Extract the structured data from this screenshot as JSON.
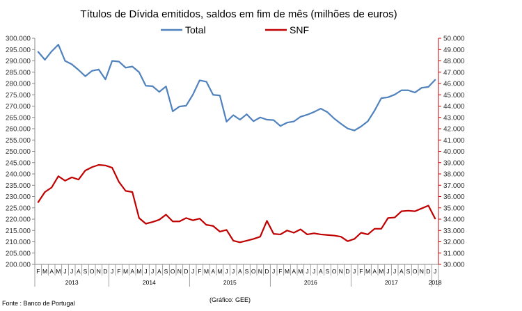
{
  "chart_data": {
    "type": "line",
    "title": "Títulos de Dívida emitidos, saldos em fim de mês  (milhões de euros)",
    "source": "Fonte : Banco de Portugal",
    "credit": "(Gráfico: GEE)",
    "left_axis": {
      "min": 200000,
      "max": 300000,
      "step": 5000,
      "tick_labels": [
        "200.000",
        "205.000",
        "210.000",
        "215.000",
        "220.000",
        "225.000",
        "230.000",
        "235.000",
        "240.000",
        "245.000",
        "250.000",
        "255.000",
        "260.000",
        "265.000",
        "270.000",
        "275.000",
        "280.000",
        "285.000",
        "290.000",
        "295.000",
        "300.000"
      ]
    },
    "right_axis": {
      "min": 30000,
      "max": 50000,
      "step": 1000,
      "color": "#c00000",
      "tick_labels": [
        "30.000",
        "31.000",
        "32.000",
        "33.000",
        "34.000",
        "35.000",
        "36.000",
        "37.000",
        "38.000",
        "39.000",
        "40.000",
        "41.000",
        "42.000",
        "43.000",
        "44.000",
        "45.000",
        "46.000",
        "47.000",
        "48.000",
        "49.000",
        "50.000"
      ]
    },
    "month_labels": [
      "F",
      "M",
      "A",
      "M",
      "J",
      "J",
      "A",
      "S",
      "O",
      "N",
      "D",
      "J",
      "F",
      "M",
      "A",
      "M",
      "J",
      "J",
      "A",
      "S",
      "O",
      "N",
      "D",
      "J",
      "F",
      "M",
      "A",
      "M",
      "J",
      "J",
      "A",
      "S",
      "O",
      "N",
      "D",
      "J",
      "F",
      "M",
      "A",
      "M",
      "J",
      "J",
      "A",
      "S",
      "O",
      "N",
      "D",
      "J",
      "F",
      "M",
      "A",
      "M",
      "J",
      "J",
      "A",
      "S",
      "O",
      "N",
      "D",
      "J"
    ],
    "year_groups": [
      {
        "label": "2013",
        "start": 0,
        "end": 10
      },
      {
        "label": "2014",
        "start": 11,
        "end": 22
      },
      {
        "label": "2015",
        "start": 23,
        "end": 34
      },
      {
        "label": "2016",
        "start": 35,
        "end": 46
      },
      {
        "label": "2017",
        "start": 47,
        "end": 58
      },
      {
        "label": "2018",
        "start": 59,
        "end": 59
      }
    ],
    "series": [
      {
        "name": "Total",
        "axis": "left",
        "color": "#4f81bd",
        "values": [
          294000,
          290500,
          294200,
          297200,
          290000,
          288500,
          286000,
          283200,
          285600,
          286200,
          281800,
          290000,
          289700,
          287000,
          287500,
          285000,
          279000,
          278800,
          276300,
          278700,
          267700,
          269800,
          270200,
          275100,
          281400,
          280800,
          275000,
          274700,
          263100,
          266000,
          264000,
          266400,
          263300,
          265000,
          264000,
          263800,
          261200,
          262700,
          263200,
          265300,
          266200,
          267400,
          268900,
          267300,
          264500,
          262200,
          260100,
          259200,
          261000,
          263300,
          268000,
          273500,
          273900,
          275100,
          277000,
          277000,
          276000,
          278100,
          278500,
          281600
        ]
      },
      {
        "name": "SNF",
        "axis": "right",
        "color": "#c00000",
        "values": [
          35500,
          36400,
          36800,
          37800,
          37400,
          37700,
          37500,
          38300,
          38600,
          38800,
          38750,
          38550,
          37300,
          36500,
          36400,
          34100,
          33600,
          33750,
          33950,
          34400,
          33800,
          33800,
          34100,
          33900,
          34050,
          33500,
          33400,
          32900,
          33050,
          32100,
          31950,
          32100,
          32250,
          32450,
          33850,
          32700,
          32650,
          33000,
          32800,
          33100,
          32650,
          32750,
          32650,
          32600,
          32550,
          32450,
          32050,
          32250,
          32800,
          32650,
          33150,
          33150,
          34100,
          34150,
          34700,
          34750,
          34700,
          34950,
          35200,
          34050
        ]
      }
    ]
  }
}
